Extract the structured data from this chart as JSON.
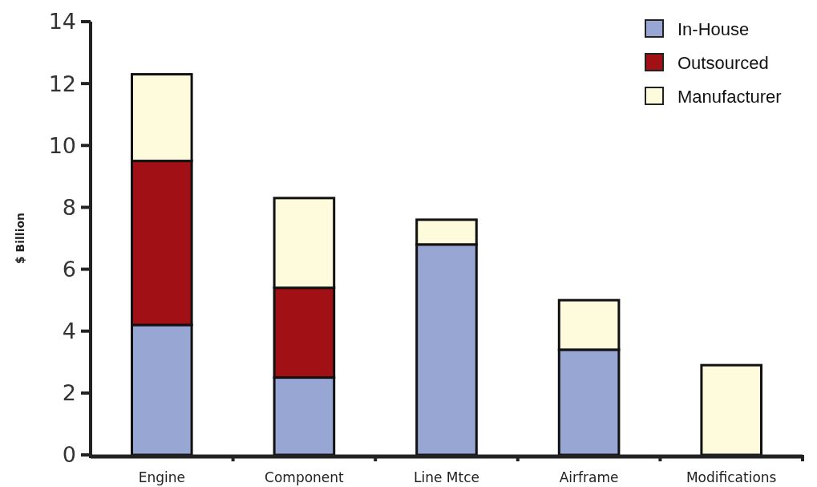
{
  "chart_data": {
    "type": "bar",
    "stacked": true,
    "ylabel": "$ Billion",
    "categories": [
      "Engine",
      "Component",
      "Line Mtce",
      "Airframe",
      "Modifications"
    ],
    "series": [
      {
        "name": "In-House",
        "color": "#98a6d4",
        "values": [
          4.2,
          2.5,
          6.8,
          3.4,
          0
        ]
      },
      {
        "name": "Outsourced",
        "color": "#a01015",
        "values": [
          5.3,
          2.9,
          0,
          0,
          0
        ]
      },
      {
        "name": "Manufacturer",
        "color": "#fefadc",
        "values": [
          2.8,
          2.9,
          0.8,
          1.6,
          2.9
        ]
      }
    ],
    "ylim": [
      0,
      14
    ],
    "yticks": [
      0,
      2,
      4,
      6,
      8,
      10,
      12,
      14
    ],
    "legend": "top right",
    "grid": false
  }
}
